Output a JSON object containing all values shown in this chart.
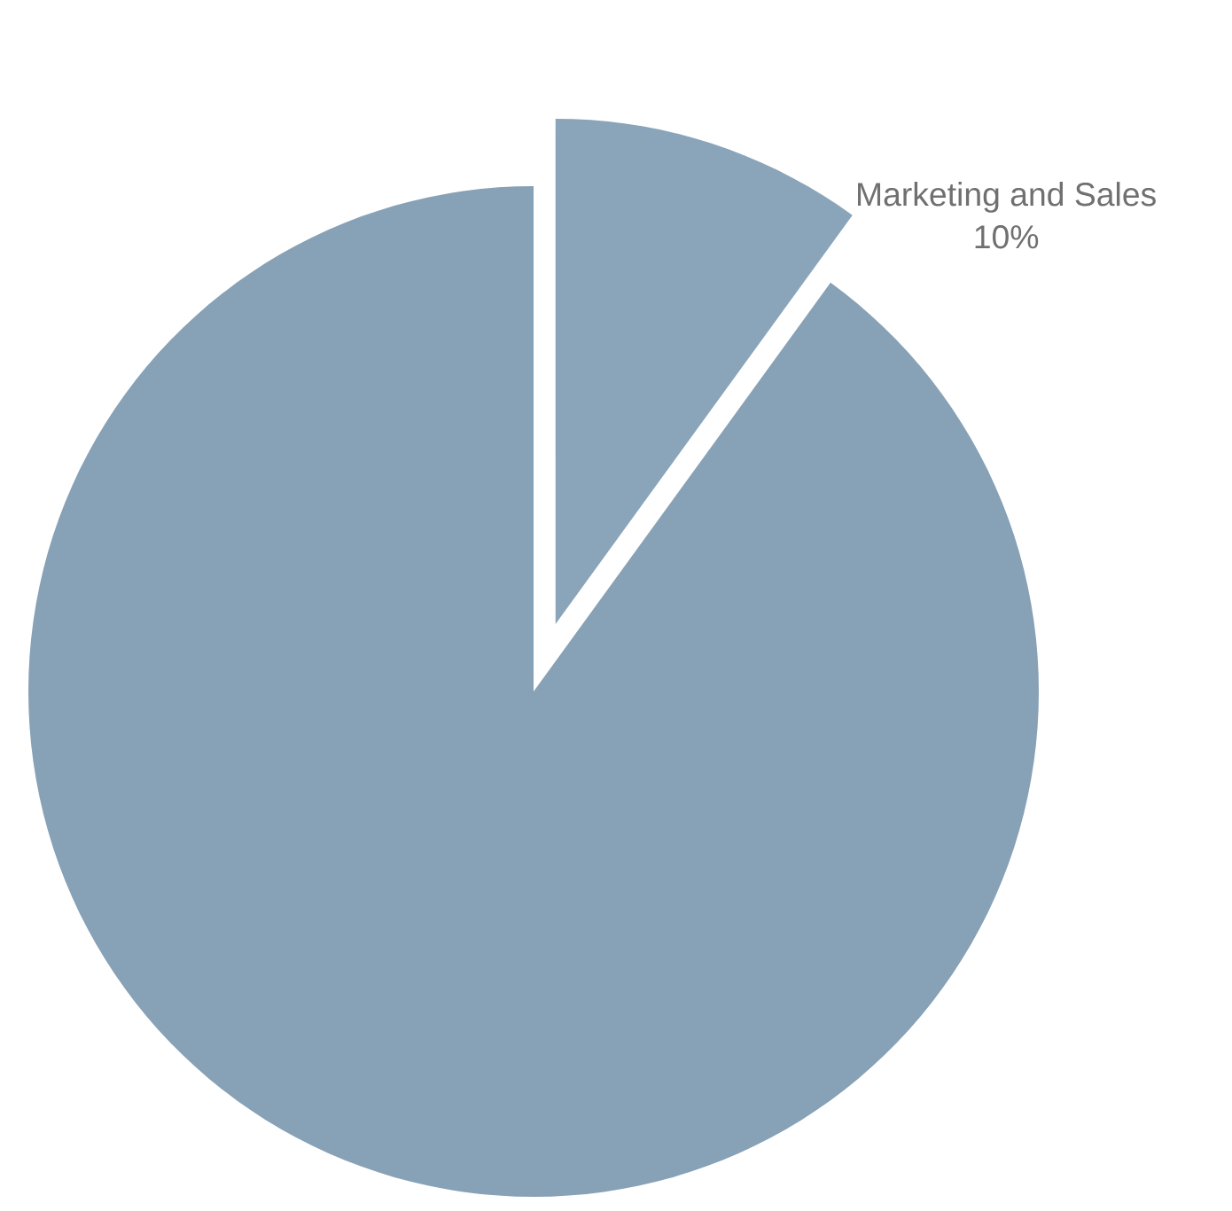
{
  "chart_data": {
    "type": "pie",
    "categories": [
      "Marketing and Sales",
      null
    ],
    "values": [
      10,
      90
    ],
    "value_labels": [
      "10%",
      null
    ],
    "colors": [
      "#8aa5ba",
      "#87a1b6"
    ]
  }
}
